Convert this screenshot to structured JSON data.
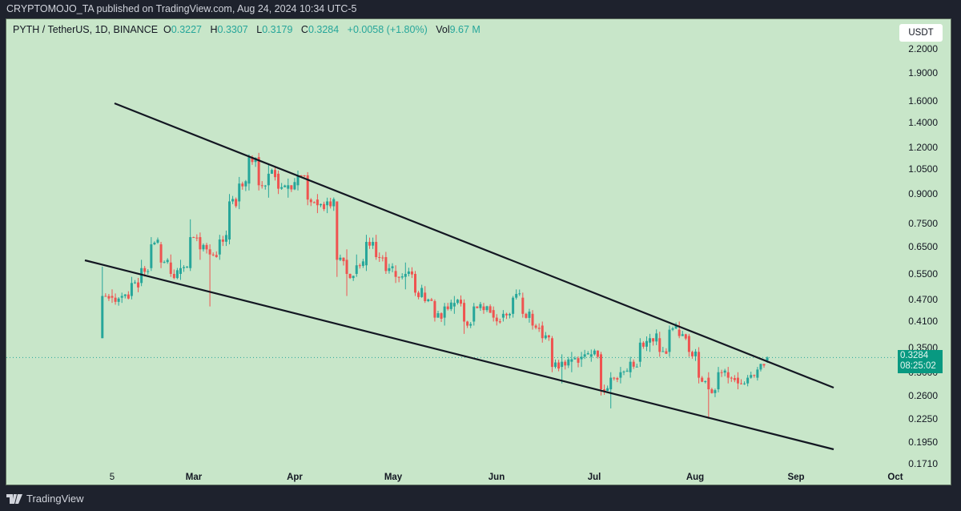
{
  "publisher_line": "CRYPTOMOJO_TA published on TradingView.com, Aug 24, 2024 10:34 UTC-5",
  "legend": {
    "symbol": "PYTH / TetherUS, 1D, BINANCE",
    "open_label": "O",
    "open": "0.3227",
    "high_label": "H",
    "high": "0.3307",
    "low_label": "L",
    "low": "0.3179",
    "close_label": "C",
    "close": "0.3284",
    "change": "+0.0058 (+1.80%)",
    "vol_label": "Vol",
    "vol": "9.67 M"
  },
  "currency_button": "USDT",
  "price_tag": {
    "price": "0.3284",
    "countdown": "08:25:02"
  },
  "brand": "TradingView",
  "colors": {
    "up": "#26a69a",
    "down": "#ef5350",
    "background": "#c8e6c9",
    "frame": "#1e222d",
    "trendline": "#131722"
  },
  "chart_data": {
    "type": "candlestick",
    "title": "PYTH / TetherUS, 1D, BINANCE",
    "xlabel": "",
    "ylabel": "USDT",
    "scale": "log",
    "ylim": [
      0.165,
      2.3
    ],
    "y_ticks": [
      "2.2000",
      "1.9000",
      "1.6000",
      "1.4000",
      "1.2000",
      "1.0500",
      "0.9000",
      "0.7500",
      "0.6500",
      "0.5500",
      "0.4700",
      "0.4100",
      "0.3500",
      "0.3000",
      "0.2600",
      "0.2250",
      "0.1950",
      "0.1710"
    ],
    "x_ticks": [
      "5",
      "Mar",
      "Apr",
      "May",
      "Jun",
      "Jul",
      "Aug",
      "Sep",
      "Oct"
    ],
    "current_price": 0.3284,
    "trendlines": [
      {
        "name": "upper-resistance",
        "from": {
          "date": "2024-02-06",
          "price": 1.55
        },
        "to": {
          "date": "2024-09-11",
          "price": 0.275
        }
      },
      {
        "name": "lower-support",
        "from": {
          "date": "2024-01-27",
          "price": 0.61
        },
        "to": {
          "date": "2024-09-11",
          "price": 0.188
        }
      }
    ],
    "closes_path": [
      [
        "2024-02-02",
        0.37,
        0.575,
        0.37,
        0.48
      ],
      [
        "2024-02-05",
        0.48,
        0.5,
        0.46,
        0.475
      ],
      [
        "2024-02-08",
        0.475,
        0.49,
        0.46,
        0.48
      ],
      [
        "2024-02-11",
        0.48,
        0.54,
        0.47,
        0.52
      ],
      [
        "2024-02-14",
        0.52,
        0.6,
        0.51,
        0.57
      ],
      [
        "2024-02-17",
        0.57,
        0.69,
        0.56,
        0.66
      ],
      [
        "2024-02-20",
        0.66,
        0.67,
        0.57,
        0.59
      ],
      [
        "2024-02-23",
        0.59,
        0.62,
        0.54,
        0.55
      ],
      [
        "2024-02-26",
        0.55,
        0.6,
        0.53,
        0.57
      ],
      [
        "2024-02-29",
        0.57,
        0.77,
        0.56,
        0.69
      ],
      [
        "2024-03-03",
        0.69,
        0.71,
        0.6,
        0.64
      ],
      [
        "2024-03-06",
        0.64,
        0.66,
        0.45,
        0.62
      ],
      [
        "2024-03-09",
        0.62,
        0.7,
        0.6,
        0.68
      ],
      [
        "2024-03-12",
        0.68,
        0.9,
        0.66,
        0.86
      ],
      [
        "2024-03-15",
        0.86,
        1.0,
        0.82,
        0.96
      ],
      [
        "2024-03-18",
        0.96,
        1.15,
        0.92,
        1.13
      ],
      [
        "2024-03-21",
        1.13,
        1.16,
        0.92,
        0.95
      ],
      [
        "2024-03-24",
        0.95,
        1.08,
        0.88,
        1.02
      ],
      [
        "2024-03-27",
        1.02,
        1.04,
        0.9,
        0.93
      ],
      [
        "2024-03-30",
        0.93,
        0.99,
        0.88,
        0.95
      ],
      [
        "2024-04-02",
        0.95,
        1.04,
        0.92,
        1.01
      ],
      [
        "2024-04-05",
        1.01,
        1.03,
        0.84,
        0.87
      ],
      [
        "2024-04-08",
        0.87,
        0.9,
        0.8,
        0.84
      ],
      [
        "2024-04-11",
        0.84,
        0.88,
        0.8,
        0.86
      ],
      [
        "2024-04-14",
        0.86,
        0.86,
        0.54,
        0.6
      ],
      [
        "2024-04-17",
        0.6,
        0.64,
        0.48,
        0.55
      ],
      [
        "2024-04-20",
        0.55,
        0.62,
        0.54,
        0.58
      ],
      [
        "2024-04-23",
        0.58,
        0.7,
        0.56,
        0.67
      ],
      [
        "2024-04-26",
        0.67,
        0.7,
        0.6,
        0.61
      ],
      [
        "2024-04-29",
        0.61,
        0.63,
        0.55,
        0.56
      ],
      [
        "2024-05-02",
        0.56,
        0.58,
        0.52,
        0.54
      ],
      [
        "2024-05-05",
        0.54,
        0.59,
        0.5,
        0.55
      ],
      [
        "2024-05-08",
        0.55,
        0.56,
        0.48,
        0.49
      ],
      [
        "2024-05-11",
        0.49,
        0.51,
        0.46,
        0.465
      ],
      [
        "2024-05-14",
        0.465,
        0.47,
        0.41,
        0.42
      ],
      [
        "2024-05-17",
        0.42,
        0.46,
        0.4,
        0.45
      ],
      [
        "2024-05-20",
        0.45,
        0.48,
        0.43,
        0.46
      ],
      [
        "2024-05-23",
        0.46,
        0.47,
        0.38,
        0.41
      ],
      [
        "2024-05-26",
        0.41,
        0.46,
        0.4,
        0.45
      ],
      [
        "2024-05-29",
        0.45,
        0.46,
        0.43,
        0.44
      ],
      [
        "2024-06-01",
        0.44,
        0.45,
        0.41,
        0.42
      ],
      [
        "2024-06-04",
        0.42,
        0.44,
        0.41,
        0.43
      ],
      [
        "2024-06-07",
        0.43,
        0.48,
        0.42,
        0.475
      ],
      [
        "2024-06-10",
        0.475,
        0.49,
        0.42,
        0.43
      ],
      [
        "2024-06-13",
        0.43,
        0.44,
        0.39,
        0.4
      ],
      [
        "2024-06-16",
        0.4,
        0.41,
        0.36,
        0.37
      ],
      [
        "2024-06-19",
        0.37,
        0.375,
        0.3,
        0.31
      ],
      [
        "2024-06-22",
        0.31,
        0.335,
        0.28,
        0.32
      ],
      [
        "2024-06-25",
        0.32,
        0.34,
        0.3,
        0.325
      ],
      [
        "2024-06-28",
        0.325,
        0.34,
        0.31,
        0.33
      ],
      [
        "2024-07-01",
        0.33,
        0.345,
        0.32,
        0.335
      ],
      [
        "2024-07-04",
        0.335,
        0.34,
        0.26,
        0.27
      ],
      [
        "2024-07-07",
        0.27,
        0.3,
        0.24,
        0.29
      ],
      [
        "2024-07-10",
        0.29,
        0.31,
        0.28,
        0.3
      ],
      [
        "2024-07-13",
        0.3,
        0.33,
        0.29,
        0.32
      ],
      [
        "2024-07-16",
        0.32,
        0.37,
        0.31,
        0.36
      ],
      [
        "2024-07-19",
        0.36,
        0.38,
        0.34,
        0.37
      ],
      [
        "2024-07-22",
        0.37,
        0.385,
        0.33,
        0.34
      ],
      [
        "2024-07-25",
        0.34,
        0.4,
        0.33,
        0.39
      ],
      [
        "2024-07-28",
        0.39,
        0.41,
        0.37,
        0.375
      ],
      [
        "2024-07-31",
        0.375,
        0.38,
        0.33,
        0.34
      ],
      [
        "2024-08-03",
        0.34,
        0.35,
        0.28,
        0.29
      ],
      [
        "2024-08-06",
        0.29,
        0.3,
        0.225,
        0.27
      ],
      [
        "2024-08-09",
        0.27,
        0.31,
        0.265,
        0.3
      ],
      [
        "2024-08-12",
        0.3,
        0.31,
        0.28,
        0.29
      ],
      [
        "2024-08-15",
        0.29,
        0.3,
        0.27,
        0.28
      ],
      [
        "2024-08-18",
        0.28,
        0.295,
        0.275,
        0.29
      ],
      [
        "2024-08-21",
        0.29,
        0.31,
        0.285,
        0.305
      ],
      [
        "2024-08-24",
        0.3227,
        0.3307,
        0.3179,
        0.3284
      ]
    ]
  }
}
